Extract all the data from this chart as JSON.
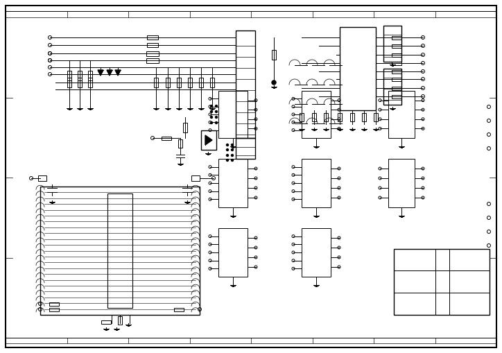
{
  "bg_color": "#ffffff",
  "lc": "#000000",
  "fig_width": 7.24,
  "fig_height": 5.09,
  "dpi": 100
}
